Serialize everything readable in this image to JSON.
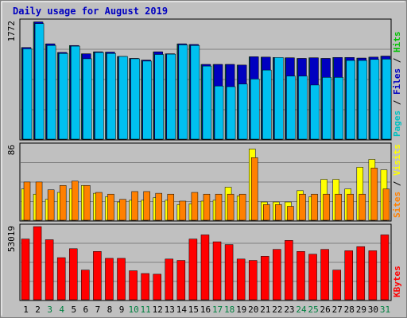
{
  "chart_data": {
    "type": "bar",
    "title": "Daily usage for August 2019",
    "categories": [
      "1",
      "2",
      "3",
      "4",
      "5",
      "6",
      "7",
      "8",
      "9",
      "10",
      "11",
      "12",
      "13",
      "14",
      "15",
      "16",
      "17",
      "18",
      "19",
      "20",
      "21",
      "22",
      "23",
      "24",
      "25",
      "26",
      "27",
      "28",
      "29",
      "30",
      "31"
    ],
    "weekend_days": [
      "3",
      "4",
      "10",
      "11",
      "17",
      "18",
      "24",
      "25",
      "31"
    ],
    "panels": [
      {
        "max_label": "1772",
        "ylim": [
          0,
          1772
        ],
        "legend": [
          "Pages",
          "Files",
          "Hits"
        ],
        "legend_colors": [
          "#00c0c0",
          "#0000c0",
          "#00c000"
        ],
        "series": [
          {
            "name": "Hits",
            "color": "#008040",
            "values": [
              1380,
              1765,
              1435,
              1305,
              1410,
              1285,
              1315,
              1310,
              1245,
              1215,
              1190,
              1315,
              1285,
              1435,
              1425,
              1125,
              1125,
              1125,
              1115,
              1240,
              1235,
              1230,
              1225,
              1215,
              1225,
              1215,
              1230,
              1230,
              1220,
              1235,
              1250
            ]
          },
          {
            "name": "Files",
            "color": "#0000c0",
            "values": [
              1380,
              1765,
              1435,
              1305,
              1410,
              1285,
              1315,
              1310,
              1245,
              1215,
              1190,
              1315,
              1285,
              1435,
              1425,
              1125,
              1125,
              1125,
              1115,
              1240,
              1235,
              1230,
              1225,
              1215,
              1225,
              1215,
              1230,
              1230,
              1220,
              1235,
              1250
            ]
          },
          {
            "name": "Pages",
            "color": "#00c0f0",
            "values": [
              1360,
              1740,
              1410,
              1290,
              1400,
              1210,
              1305,
              1290,
              1245,
              1210,
              1175,
              1275,
              1280,
              1420,
              1410,
              1100,
              800,
              790,
              830,
              905,
              1040,
              1230,
              950,
              950,
              815,
              930,
              930,
              1185,
              1185,
              1200,
              1205
            ]
          }
        ]
      },
      {
        "max_label": "86",
        "ylim": [
          0,
          86
        ],
        "legend": [
          "Sites",
          "Visits"
        ],
        "legend_colors": [
          "#ff8000",
          "#ffff00"
        ],
        "series": [
          {
            "name": "Visits",
            "color": "#ffff00",
            "values": [
              36,
              30,
              24,
              32,
              36,
              40,
              31,
              27,
              21,
              23,
              23,
              26,
              23,
              18,
              19,
              22,
              23,
              38,
              28,
              82,
              21,
              21,
              21,
              34,
              27,
              47,
              47,
              36,
              61,
              70,
              58
            ]
          },
          {
            "name": "Sites",
            "color": "#ff8000",
            "values": [
              44,
              44,
              35,
              40,
              45,
              40,
              32,
              30,
              24,
              33,
              33,
              31,
              30,
              22,
              32,
              30,
              30,
              30,
              30,
              72,
              18,
              18,
              16,
              30,
              30,
              30,
              30,
              30,
              30,
              60,
              36
            ]
          }
        ]
      },
      {
        "max_label": "53019",
        "ylim": [
          0,
          53019
        ],
        "legend": [
          "KBytes"
        ],
        "legend_colors": [
          "#ff0000"
        ],
        "series": [
          {
            "name": "KBytes",
            "color": "#ff0000",
            "values": [
              44000,
              53000,
              43500,
              30500,
              37000,
              21500,
              35000,
              30000,
              30000,
              21000,
              19000,
              18500,
              29500,
              28500,
              44000,
              47000,
              42000,
              40000,
              29500,
              28500,
              31500,
              36500,
              43000,
              35000,
              33000,
              36500,
              21500,
              35500,
              38500,
              35500,
              47000
            ]
          }
        ]
      }
    ]
  }
}
